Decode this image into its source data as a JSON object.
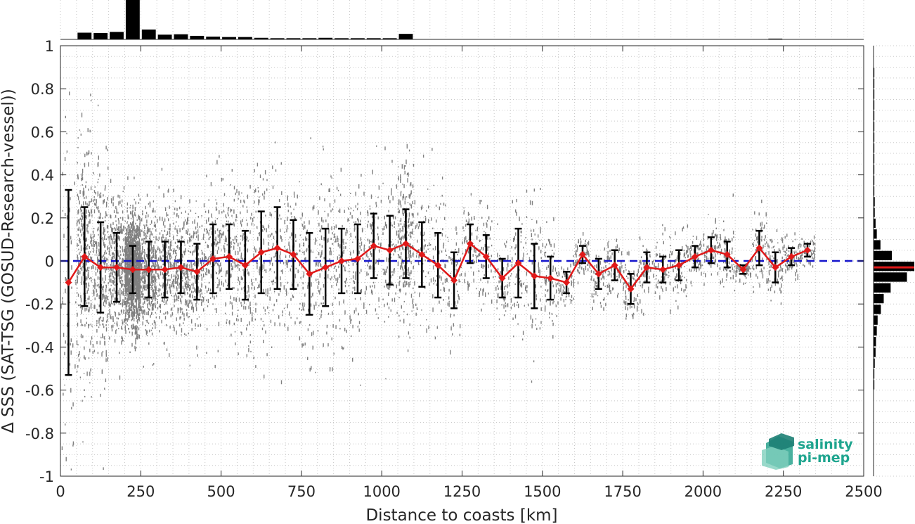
{
  "chart_data": {
    "type": "scatter",
    "xlabel": "Distance to coasts [km]",
    "ylabel": "Δ SSS (SAT-TSG (GOSUD-Research-vessel))",
    "xlim": [
      0,
      2500
    ],
    "ylim": [
      -1,
      1
    ],
    "xticks": [
      "0",
      "250",
      "500",
      "750",
      "1000",
      "1250",
      "1500",
      "1750",
      "2000",
      "2250",
      "2500"
    ],
    "yticks": [
      "-1",
      "-0.8",
      "-0.6",
      "-0.4",
      "-0.2",
      "0",
      "0.2",
      "0.4",
      "0.6",
      "0.8",
      "1"
    ],
    "grid": true,
    "reference_line": 0,
    "bin_means": {
      "x": [
        25,
        75,
        125,
        175,
        225,
        275,
        325,
        375,
        425,
        475,
        525,
        575,
        625,
        675,
        725,
        775,
        825,
        875,
        925,
        975,
        1025,
        1075,
        1125,
        1175,
        1225,
        1275,
        1325,
        1375,
        1425,
        1475,
        1525,
        1575,
        1625,
        1675,
        1725,
        1775,
        1825,
        1875,
        1925,
        1975,
        2025,
        2075,
        2125,
        2175,
        2225,
        2275,
        2325
      ],
      "mean": [
        -0.1,
        0.02,
        -0.03,
        -0.03,
        -0.04,
        -0.04,
        -0.04,
        -0.03,
        -0.05,
        0.01,
        0.02,
        -0.02,
        0.04,
        0.06,
        0.03,
        -0.06,
        -0.03,
        0.0,
        0.01,
        0.07,
        0.05,
        0.08,
        0.03,
        -0.02,
        -0.09,
        0.08,
        0.02,
        -0.08,
        -0.01,
        -0.07,
        -0.08,
        -0.1,
        0.03,
        -0.06,
        -0.02,
        -0.13,
        -0.03,
        -0.04,
        -0.02,
        0.02,
        0.05,
        0.03,
        -0.04,
        0.06,
        -0.03,
        0.02,
        0.05
      ],
      "std": [
        0.43,
        0.23,
        0.21,
        0.16,
        0.11,
        0.13,
        0.13,
        0.12,
        0.13,
        0.16,
        0.15,
        0.16,
        0.19,
        0.19,
        0.16,
        0.19,
        0.18,
        0.15,
        0.16,
        0.15,
        0.16,
        0.16,
        0.15,
        0.15,
        0.13,
        0.09,
        0.1,
        0.09,
        0.16,
        0.15,
        0.1,
        0.05,
        0.04,
        0.07,
        0.07,
        0.07,
        0.07,
        0.06,
        0.07,
        0.05,
        0.06,
        0.06,
        0.02,
        0.08,
        0.07,
        0.04,
        0.03
      ]
    },
    "top_histogram": {
      "bin_width": 50,
      "x": [
        75,
        125,
        175,
        225,
        275,
        325,
        375,
        425,
        475,
        525,
        575,
        625,
        675,
        725,
        775,
        825,
        875,
        925,
        975,
        1025,
        1075,
        2225
      ],
      "relative_counts": [
        0.17,
        0.16,
        0.19,
        1.0,
        0.25,
        0.12,
        0.13,
        0.09,
        0.07,
        0.06,
        0.06,
        0.04,
        0.03,
        0.03,
        0.03,
        0.04,
        0.03,
        0.03,
        0.03,
        0.03,
        0.14,
        0.02
      ]
    },
    "right_histogram": {
      "bin_width": 0.05,
      "y": [
        -0.575,
        -0.525,
        -0.475,
        -0.425,
        -0.375,
        -0.325,
        -0.275,
        -0.225,
        -0.175,
        -0.125,
        -0.075,
        -0.025,
        0.025,
        0.075,
        0.125,
        0.175,
        0.225,
        0.275,
        0.325,
        0.375,
        0.425,
        0.475,
        0.525,
        0.575,
        0.625,
        0.675,
        0.725,
        0.775,
        0.825,
        0.875
      ],
      "relative_counts": [
        0.02,
        0.02,
        0.03,
        0.05,
        0.06,
        0.08,
        0.1,
        0.18,
        0.25,
        0.42,
        0.82,
        1.0,
        0.45,
        0.17,
        0.08,
        0.05,
        0.03,
        0.03,
        0.02,
        0.02,
        0.02,
        0.02,
        0.02,
        0.02,
        0.02,
        0.02,
        0.02,
        0.02,
        0.02,
        0.02
      ],
      "mean_line": -0.03
    },
    "colors": {
      "scatter": "#808080",
      "mean_line": "#e01919",
      "error_bars": "#000000",
      "reference": "#1515cc",
      "histogram": "#000000",
      "grid": "#c8c8c8"
    }
  },
  "logo": {
    "line1": "salinity",
    "line2": "pi-mep",
    "text_color": "#1fa58f"
  }
}
